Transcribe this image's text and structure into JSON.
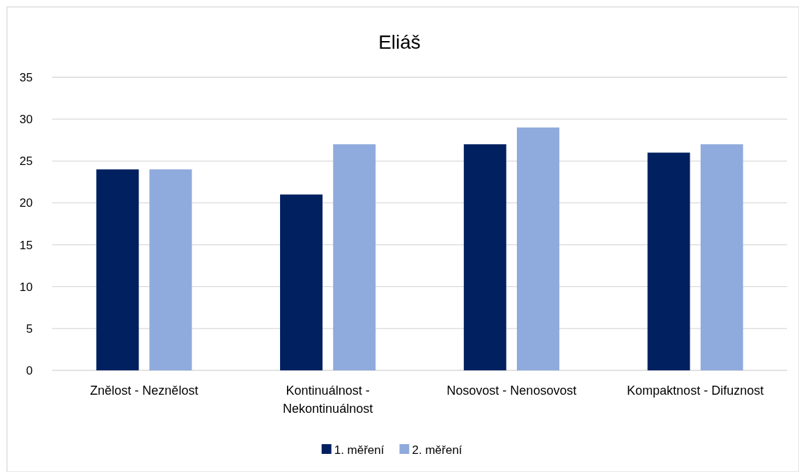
{
  "chart_data": {
    "type": "bar",
    "title": "Eliáš",
    "categories": [
      "Znělost - Neznělost",
      "Kontinuálnost - Nekontinuálnost",
      "Nosovost - Nenosovost",
      "Kompaktnost - Difuznost"
    ],
    "series": [
      {
        "name": "1. měření",
        "color": "#002060",
        "values": [
          24,
          21,
          27,
          26
        ]
      },
      {
        "name": "2. měření",
        "color": "#8faadc",
        "values": [
          24,
          27,
          29,
          27
        ]
      }
    ],
    "ylim": [
      0,
      35
    ],
    "yticks": [
      0,
      5,
      10,
      15,
      20,
      25,
      30,
      35
    ],
    "grid": "y",
    "legend": "bottom"
  }
}
